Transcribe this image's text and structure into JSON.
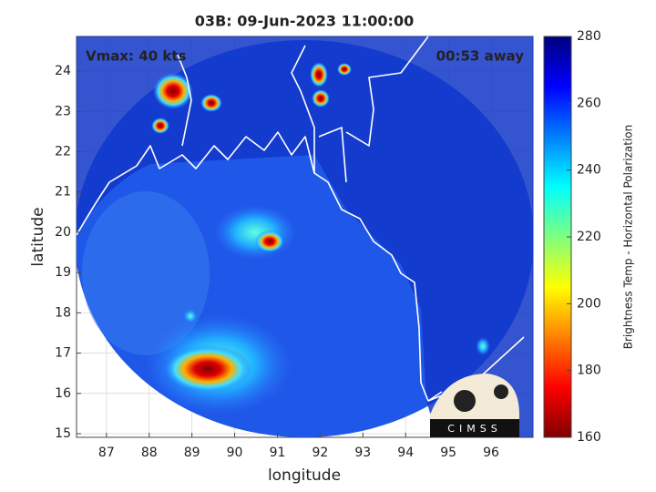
{
  "chart_data": {
    "type": "map",
    "title": "03B: 09-Jun-2023 11:00:00",
    "annotations": [
      "Vmax: 40 kts",
      "00:53 away"
    ],
    "xlabel": "longitude",
    "ylabel": "latitude",
    "xlim": [
      86.3,
      96.98
    ],
    "xticks": [
      87,
      88,
      89,
      90,
      91,
      92,
      93,
      94,
      95,
      96
    ],
    "ylim": [
      14.91,
      24.86
    ],
    "yticks": [
      15,
      16,
      17,
      18,
      19,
      20,
      21,
      22,
      23,
      24
    ],
    "grid": true,
    "colorbar_label": "Brightness Temp - Horizontal Polarization",
    "clim": [
      160,
      280
    ],
    "cticks": [
      160,
      180,
      200,
      220,
      240,
      260,
      280
    ],
    "logo_text": "CIMSS"
  }
}
